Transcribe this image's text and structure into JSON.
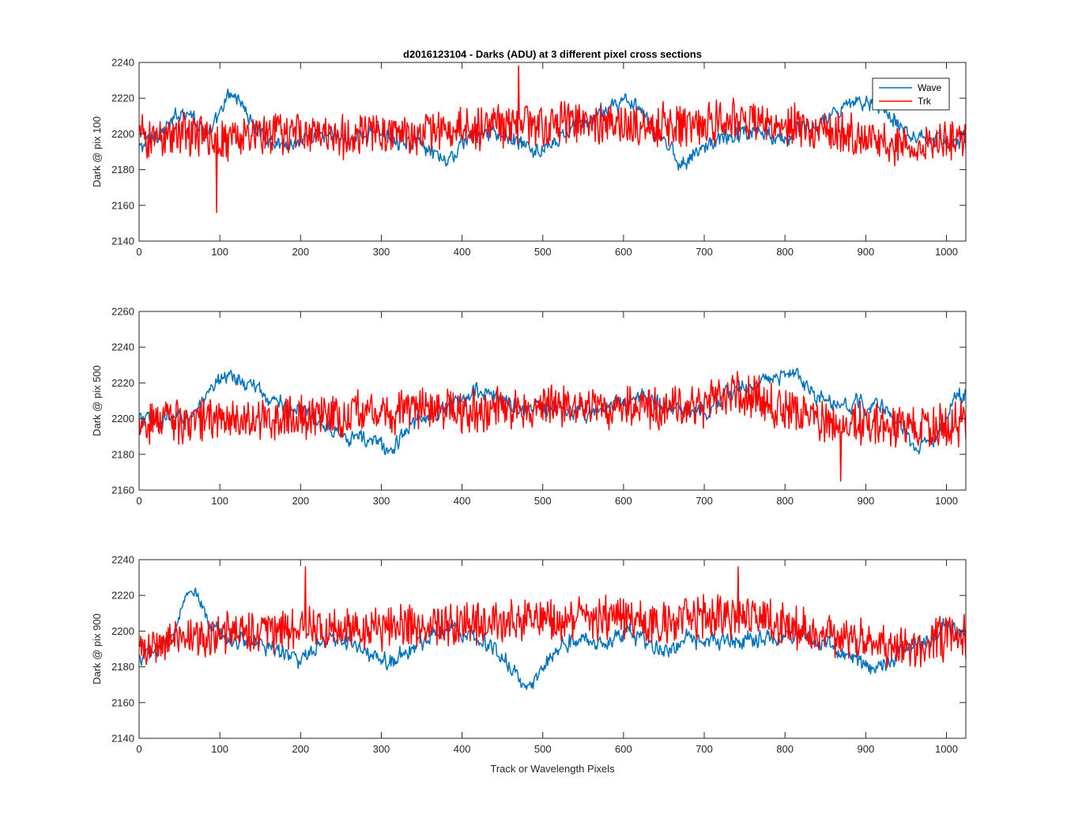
{
  "title": "d2016123104 - Darks (ADU) at 3 different pixel cross sections",
  "xlabel": "Track or Wavelength Pixels",
  "legend": {
    "location": "top-right of first panel",
    "entries": [
      {
        "name": "Wave",
        "color": "#0072BD"
      },
      {
        "name": "Trk",
        "color": "#FF0000"
      }
    ]
  },
  "chart_data": [
    {
      "type": "line",
      "ylabel": "Dark @ pix 100",
      "xlim": [
        0,
        1024
      ],
      "ylim": [
        2140,
        2240
      ],
      "xticks": [
        0,
        100,
        200,
        300,
        400,
        500,
        600,
        700,
        800,
        900,
        1000
      ],
      "yticks": [
        2140,
        2160,
        2180,
        2200,
        2220,
        2240
      ],
      "grid": false,
      "series": [
        {
          "name": "Wave",
          "color": "#0072BD",
          "noise_amplitude": 6,
          "x": [
            0,
            10,
            20,
            30,
            40,
            50,
            60,
            70,
            80,
            90,
            100,
            110,
            120,
            130,
            140,
            160,
            180,
            200,
            220,
            240,
            260,
            280,
            300,
            320,
            340,
            360,
            370,
            380,
            390,
            400,
            420,
            440,
            460,
            480,
            500,
            520,
            540,
            560,
            580,
            600,
            620,
            640,
            660,
            670,
            680,
            700,
            720,
            740,
            760,
            780,
            800,
            820,
            840,
            860,
            880,
            900,
            920,
            940,
            960,
            980,
            1000,
            1024
          ],
          "y": [
            2192,
            2195,
            2200,
            2202,
            2205,
            2212,
            2214,
            2208,
            2204,
            2200,
            2210,
            2220,
            2222,
            2215,
            2205,
            2197,
            2194,
            2196,
            2200,
            2198,
            2197,
            2200,
            2202,
            2198,
            2195,
            2190,
            2186,
            2184,
            2188,
            2195,
            2200,
            2200,
            2198,
            2192,
            2190,
            2196,
            2205,
            2208,
            2214,
            2220,
            2212,
            2200,
            2192,
            2184,
            2186,
            2193,
            2197,
            2200,
            2202,
            2200,
            2199,
            2202,
            2205,
            2210,
            2215,
            2220,
            2216,
            2206,
            2200,
            2198,
            2196,
            2197
          ]
        },
        {
          "name": "Trk",
          "color": "#FF0000",
          "noise_amplitude": 14,
          "x": [
            0,
            50,
            100,
            150,
            200,
            250,
            300,
            350,
            400,
            450,
            500,
            550,
            600,
            650,
            700,
            750,
            800,
            850,
            900,
            950,
            1000,
            1024
          ],
          "y": [
            2198,
            2200,
            2197,
            2200,
            2201,
            2199,
            2200,
            2201,
            2202,
            2205,
            2206,
            2206,
            2205,
            2205,
            2206,
            2207,
            2205,
            2203,
            2198,
            2194,
            2195,
            2198
          ],
          "annotated_points": [
            {
              "x": 96,
              "y": 2156
            },
            {
              "x": 470,
              "y": 2238
            }
          ]
        }
      ]
    },
    {
      "type": "line",
      "ylabel": "Dark @ pix 500",
      "xlim": [
        0,
        1024
      ],
      "ylim": [
        2160,
        2260
      ],
      "xticks": [
        0,
        100,
        200,
        300,
        400,
        500,
        600,
        700,
        800,
        900,
        1000
      ],
      "yticks": [
        2160,
        2180,
        2200,
        2220,
        2240,
        2260
      ],
      "grid": false,
      "series": [
        {
          "name": "Wave",
          "color": "#0072BD",
          "noise_amplitude": 6,
          "x": [
            0,
            20,
            40,
            60,
            80,
            90,
            100,
            110,
            120,
            140,
            160,
            180,
            200,
            220,
            240,
            260,
            280,
            300,
            310,
            320,
            340,
            360,
            380,
            400,
            420,
            440,
            460,
            480,
            500,
            520,
            540,
            560,
            580,
            600,
            620,
            640,
            660,
            680,
            700,
            720,
            740,
            760,
            780,
            800,
            810,
            820,
            840,
            860,
            880,
            900,
            920,
            940,
            960,
            980,
            1000,
            1010,
            1024
          ],
          "y": [
            2200,
            2198,
            2200,
            2202,
            2208,
            2214,
            2224,
            2226,
            2222,
            2218,
            2212,
            2208,
            2203,
            2200,
            2196,
            2190,
            2188,
            2186,
            2181,
            2186,
            2198,
            2203,
            2206,
            2210,
            2216,
            2213,
            2208,
            2204,
            2206,
            2205,
            2205,
            2204,
            2207,
            2210,
            2212,
            2208,
            2205,
            2205,
            2202,
            2208,
            2218,
            2220,
            2222,
            2224,
            2226,
            2220,
            2212,
            2208,
            2207,
            2208,
            2206,
            2198,
            2185,
            2186,
            2196,
            2212,
            2214
          ]
        },
        {
          "name": "Trk",
          "color": "#FF0000",
          "noise_amplitude": 14,
          "x": [
            0,
            50,
            100,
            150,
            200,
            250,
            300,
            350,
            400,
            450,
            500,
            550,
            600,
            650,
            700,
            720,
            750,
            800,
            850,
            900,
            950,
            1000,
            1024
          ],
          "y": [
            2198,
            2199,
            2200,
            2199,
            2201,
            2203,
            2204,
            2205,
            2204,
            2205,
            2207,
            2207,
            2207,
            2206,
            2208,
            2212,
            2214,
            2206,
            2200,
            2197,
            2195,
            2197,
            2198
          ],
          "annotated_points": [
            {
              "x": 869,
              "y": 2165
            }
          ]
        }
      ]
    },
    {
      "type": "line",
      "ylabel": "Dark @ pix 900",
      "xlim": [
        0,
        1024
      ],
      "ylim": [
        2140,
        2240
      ],
      "xticks": [
        0,
        100,
        200,
        300,
        400,
        500,
        600,
        700,
        800,
        900,
        1000
      ],
      "yticks": [
        2140,
        2160,
        2180,
        2200,
        2220,
        2240
      ],
      "grid": false,
      "series": [
        {
          "name": "Wave",
          "color": "#0072BD",
          "noise_amplitude": 6,
          "x": [
            0,
            20,
            40,
            50,
            60,
            70,
            80,
            100,
            120,
            140,
            160,
            180,
            200,
            220,
            240,
            260,
            280,
            300,
            320,
            340,
            360,
            380,
            400,
            420,
            440,
            460,
            470,
            480,
            490,
            500,
            520,
            540,
            560,
            580,
            600,
            620,
            640,
            660,
            680,
            700,
            720,
            740,
            760,
            780,
            800,
            820,
            840,
            860,
            880,
            900,
            920,
            940,
            960,
            980,
            1000,
            1024
          ],
          "y": [
            2185,
            2188,
            2196,
            2208,
            2220,
            2220,
            2208,
            2198,
            2195,
            2194,
            2192,
            2188,
            2183,
            2190,
            2195,
            2194,
            2188,
            2182,
            2186,
            2190,
            2198,
            2202,
            2200,
            2197,
            2190,
            2180,
            2172,
            2168,
            2172,
            2180,
            2192,
            2196,
            2194,
            2192,
            2200,
            2196,
            2190,
            2190,
            2196,
            2192,
            2194,
            2194,
            2196,
            2197,
            2196,
            2198,
            2195,
            2190,
            2186,
            2180,
            2182,
            2187,
            2192,
            2196,
            2201,
            2198
          ]
        },
        {
          "name": "Trk",
          "color": "#FF0000",
          "noise_amplitude": 14,
          "x": [
            0,
            50,
            100,
            150,
            200,
            250,
            300,
            350,
            400,
            450,
            500,
            550,
            600,
            650,
            700,
            750,
            800,
            850,
            900,
            950,
            1000,
            1024
          ],
          "y": [
            2190,
            2195,
            2198,
            2200,
            2202,
            2203,
            2202,
            2203,
            2204,
            2206,
            2207,
            2206,
            2207,
            2205,
            2208,
            2209,
            2203,
            2198,
            2195,
            2192,
            2196,
            2198
          ],
          "annotated_points": [
            {
              "x": 206,
              "y": 2236
            },
            {
              "x": 742,
              "y": 2236
            }
          ]
        }
      ]
    }
  ]
}
